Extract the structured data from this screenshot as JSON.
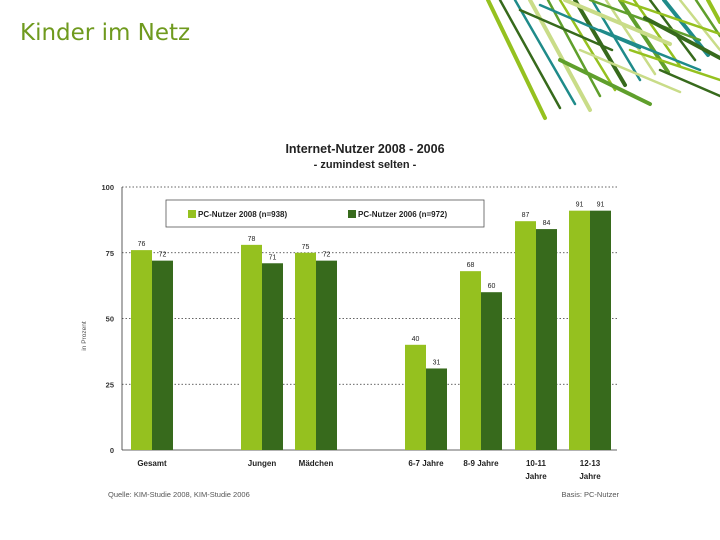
{
  "slide": {
    "title": "Kinder im Netz"
  },
  "colors": {
    "series_2008": "#95c11f",
    "series_2006": "#376a1c",
    "title_green": "#6f9a1e",
    "deco_palette": [
      "#95c11f",
      "#376a1c",
      "#1f8b8a",
      "#c9dc88",
      "#5f9f2c"
    ]
  },
  "chart_data": {
    "type": "bar",
    "title": "Internet-Nutzer 2008 - 2006",
    "subtitle": "- zumindest selten -",
    "ylabel": "in Prozent",
    "ylim": [
      0,
      100
    ],
    "yticks": [
      0,
      25,
      50,
      75,
      100
    ],
    "grid": true,
    "legend_position": "top",
    "categories": [
      "Gesamt",
      "Jungen",
      "Mädchen",
      "6-7 Jahre",
      "8-9 Jahre",
      "10-11 Jahre",
      "12-13 Jahre"
    ],
    "series": [
      {
        "name": "PC-Nutzer 2008 (n=938)",
        "values": [
          76,
          78,
          75,
          40,
          68,
          87,
          91
        ]
      },
      {
        "name": "PC-Nutzer 2006 (n=972)",
        "values": [
          72,
          71,
          72,
          31,
          60,
          84,
          91
        ]
      }
    ],
    "source": "Quelle: KIM-Studie 2008, KIM-Studie 2006",
    "basis": "Basis: PC-Nutzer"
  }
}
